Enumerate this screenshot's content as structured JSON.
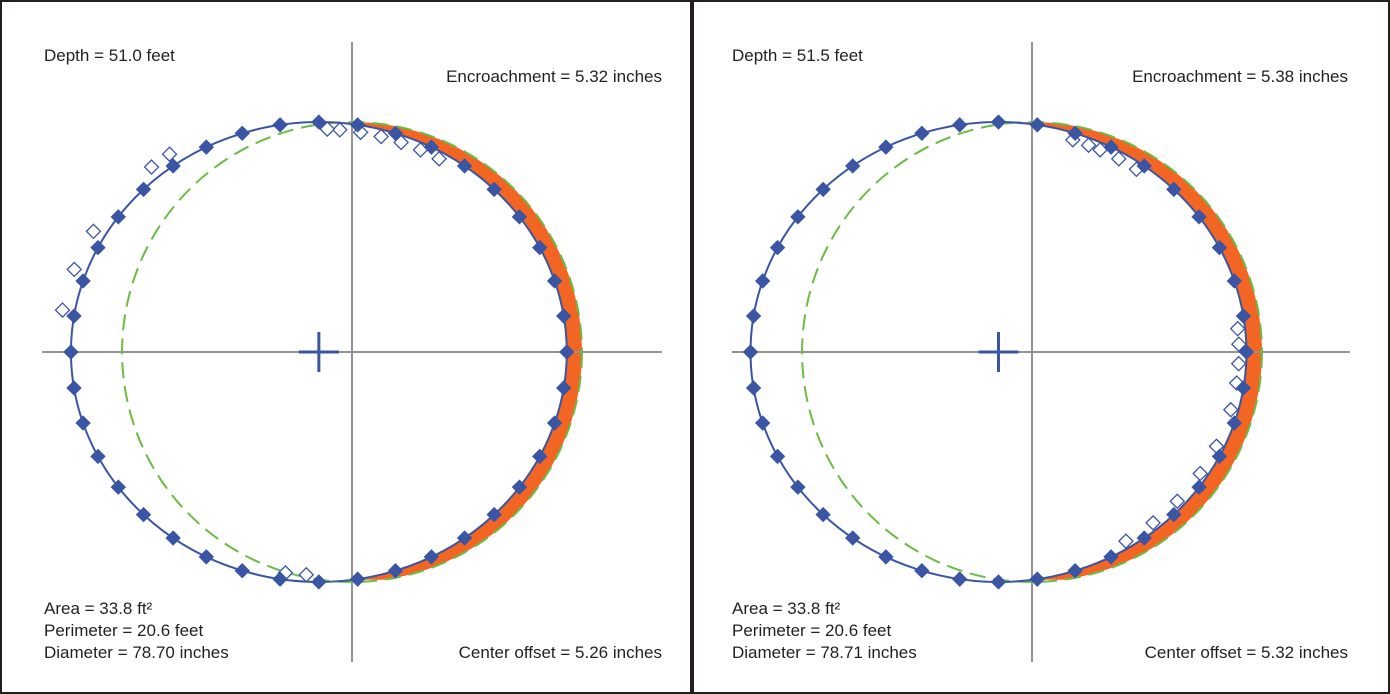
{
  "colors": {
    "measured": "#3a55a4",
    "fit": "#3a55a4",
    "reference": "#6cbb45",
    "encroachment": "#f26522",
    "axis": "#939393",
    "text": "#231f20"
  },
  "chart_data": [
    {
      "type": "scatter",
      "depth_label": "Depth = 51.0 feet",
      "encroachment_label": "Encroachment = 5.32 inches",
      "area_label": "Area = 33.8 ft²",
      "perimeter_label": "Perimeter = 20.6 feet",
      "diameter_label": "Diameter = 78.70 inches",
      "center_offset_label": "Center offset = 5.26 inches",
      "series": [
        {
          "kind": "fit-ellipse",
          "line": "solid",
          "color": "#3a55a4",
          "center": [
            -5.26,
            0
          ],
          "radii": [
            39.35,
            36.5
          ]
        },
        {
          "kind": "reference-circle",
          "line": "dashed",
          "color": "#6cbb45",
          "center": [
            0,
            0
          ],
          "radius": 36.5
        },
        {
          "kind": "encroachment",
          "fill": "#f26522"
        },
        {
          "kind": "measured-filled",
          "marker": "diamond-filled",
          "angles_deg": [
            90,
            99,
            108,
            117,
            126,
            135,
            144,
            153,
            162,
            171,
            180,
            189,
            198,
            207,
            216,
            225,
            234,
            243,
            252,
            261,
            270,
            279,
            288,
            297,
            306,
            315,
            324,
            333,
            342,
            351,
            0,
            9,
            18,
            27,
            36,
            45,
            54,
            63,
            72,
            81
          ]
        },
        {
          "kind": "measured-hollow",
          "marker": "diamond-open",
          "angles_deg": [
            60,
            65,
            70,
            75,
            80,
            85,
            88,
            125,
            130,
            150,
            160,
            170,
            262,
            267
          ]
        }
      ],
      "center_cross": [
        -5.26,
        0
      ]
    },
    {
      "type": "scatter",
      "depth_label": "Depth = 51.5 feet",
      "encroachment_label": "Encroachment = 5.38 inches",
      "area_label": "Area = 33.8 ft²",
      "perimeter_label": "Perimeter = 20.6 feet",
      "diameter_label": "Diameter = 78.71 inches",
      "center_offset_label": "Center offset = 5.32 inches",
      "series": [
        {
          "kind": "fit-ellipse",
          "line": "solid",
          "color": "#3a55a4",
          "center": [
            -5.32,
            0
          ],
          "radii": [
            39.36,
            36.5
          ]
        },
        {
          "kind": "reference-circle",
          "line": "dashed",
          "color": "#6cbb45",
          "center": [
            0,
            0
          ],
          "radius": 36.5
        },
        {
          "kind": "encroachment",
          "fill": "#f26522"
        },
        {
          "kind": "measured-filled",
          "marker": "diamond-filled",
          "angles_deg": [
            90,
            99,
            108,
            117,
            126,
            135,
            144,
            153,
            162,
            171,
            180,
            189,
            198,
            207,
            216,
            225,
            234,
            243,
            252,
            261,
            270,
            279,
            288,
            297,
            306,
            315,
            324,
            333,
            342,
            351,
            0,
            9,
            18,
            27,
            36,
            45,
            54,
            63,
            72,
            81
          ]
        },
        {
          "kind": "measured-hollow",
          "marker": "diamond-open",
          "angles_deg": [
            55,
            60,
            65,
            68,
            72,
            6,
            2,
            -3,
            -8,
            -15,
            -25,
            -33,
            -42,
            -50,
            -58
          ]
        }
      ],
      "center_cross": [
        -5.32,
        0
      ]
    }
  ]
}
